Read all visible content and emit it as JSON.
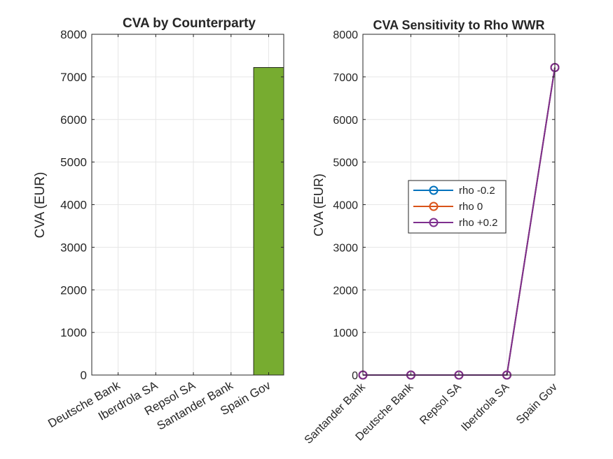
{
  "chart_data": [
    {
      "type": "bar",
      "title": "CVA by Counterparty",
      "xlabel": "",
      "ylabel": "CVA (EUR)",
      "categories": [
        "Deutsche Bank",
        "Iberdrola SA",
        "Repsol SA",
        "Santander Bank",
        "Spain Gov"
      ],
      "values": [
        0,
        0,
        0,
        0,
        7220
      ],
      "ylim": [
        0,
        8000
      ],
      "yticks": [
        0,
        1000,
        2000,
        3000,
        4000,
        5000,
        6000,
        7000,
        8000
      ],
      "grid": true,
      "bar_color": "#77ac30"
    },
    {
      "type": "line",
      "title": "CVA Sensitivity to Rho WWR",
      "xlabel": "",
      "ylabel": "CVA (EUR)",
      "categories": [
        "Santander Bank",
        "Deutsche Bank",
        "Repsol SA",
        "Iberdrola SA",
        "Spain Gov"
      ],
      "ylim": [
        0,
        8000
      ],
      "yticks": [
        0,
        1000,
        2000,
        3000,
        4000,
        5000,
        6000,
        7000,
        8000
      ],
      "grid": true,
      "legend_position": "center-left",
      "series": [
        {
          "name": "rho -0.2",
          "color": "#0072bd",
          "values": [
            0,
            0,
            0,
            0,
            7220
          ]
        },
        {
          "name": "rho 0",
          "color": "#d95319",
          "values": [
            0,
            0,
            0,
            0,
            7220
          ]
        },
        {
          "name": "rho +0.2",
          "color": "#7e2f8e",
          "values": [
            0,
            0,
            0,
            0,
            7220
          ]
        }
      ]
    }
  ]
}
